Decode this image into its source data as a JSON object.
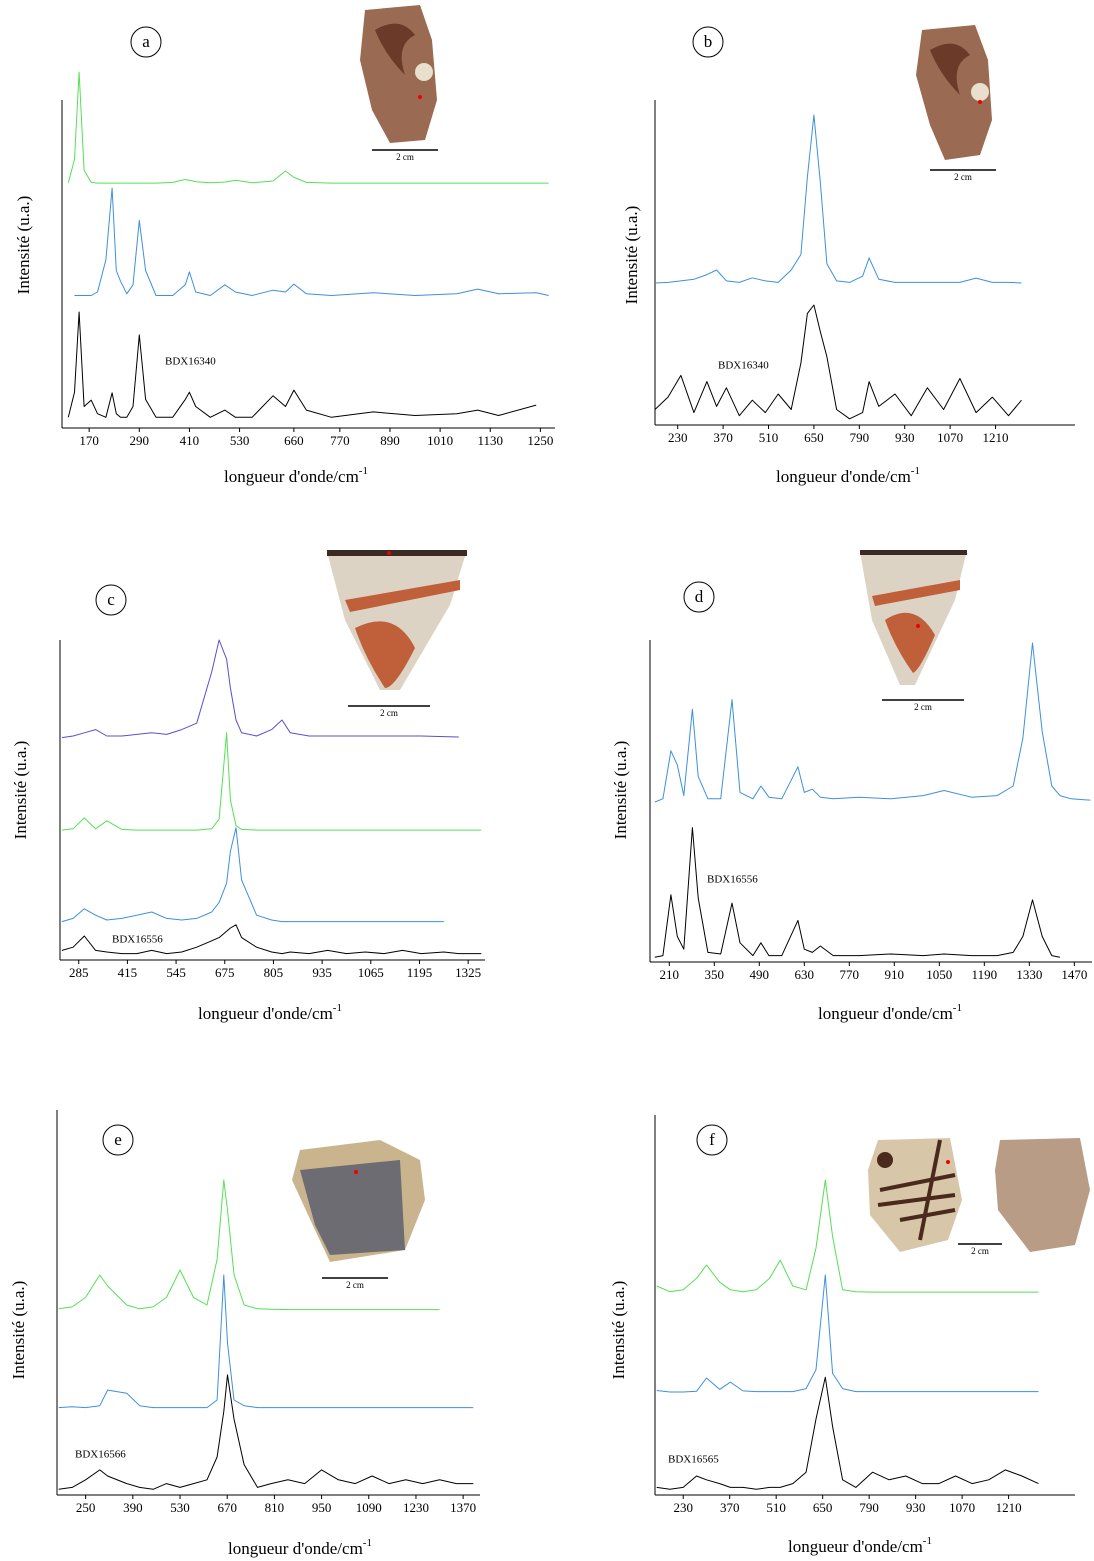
{
  "chart_data": [
    {
      "type": "line",
      "panel_label": "a",
      "ylabel": "Intensité (u.a.)",
      "xlabel": "longueur d'onde/cm",
      "xlabel_superscript": "-1",
      "annotation": "BDX16340",
      "image_scale": "2 cm",
      "x": [
        120,
        135,
        146,
        158,
        175,
        190,
        210,
        225,
        235,
        245,
        260,
        275,
        290,
        305,
        330,
        370,
        400,
        410,
        425,
        460,
        495,
        520,
        560,
        610,
        640,
        660,
        690,
        750,
        850,
        950,
        1050,
        1100,
        1150,
        1240,
        1270
      ],
      "xlim": [
        105,
        1285
      ],
      "xticks": [
        170,
        290,
        410,
        530,
        660,
        770,
        890,
        1010,
        1130,
        1250
      ],
      "ylim": [
        0,
        100
      ],
      "series": [
        {
          "color": "#55e055",
          "values": [
            68.5,
            75,
            99.4,
            72,
            68.6,
            68.4,
            68.4,
            68.4,
            68.4,
            68.4,
            68.4,
            68.4,
            68.4,
            68.4,
            68.4,
            68.6,
            69.4,
            69.2,
            68.8,
            68.5,
            68.7,
            69.2,
            68.5,
            69,
            71.8,
            70,
            68.6,
            68.4,
            68.4,
            68.4,
            68.4,
            68.4,
            68.4,
            68.4,
            68.4
          ]
        },
        {
          "color": "#3d8fe0",
          "values": [
            null,
            37,
            37,
            37,
            37,
            38,
            47,
            67,
            44,
            41,
            37.5,
            40,
            58,
            44,
            37,
            37,
            40,
            43.6,
            38,
            37,
            40,
            38,
            37,
            38.5,
            38,
            40.2,
            37.5,
            37,
            37.8,
            37,
            37.5,
            38.8,
            37.5,
            37.8,
            37
          ]
        },
        {
          "color": "#000000",
          "values": [
            3,
            10,
            32.4,
            6,
            7.8,
            4,
            3,
            9.8,
            4,
            3,
            3,
            6,
            26,
            8,
            3,
            3,
            8,
            10,
            6,
            3,
            5,
            3,
            3,
            9,
            6,
            10.6,
            5,
            3,
            4.5,
            3.5,
            4,
            5,
            3.5,
            6.4,
            null
          ]
        }
      ]
    },
    {
      "type": "line",
      "panel_label": "b",
      "ylabel": "Intensité (u.a.)",
      "xlabel": "longueur d'onde/cm",
      "xlabel_superscript": "-1",
      "annotation": "BDX16340",
      "image_scale": "2 cm",
      "x": [
        160,
        200,
        240,
        280,
        320,
        350,
        380,
        420,
        460,
        500,
        540,
        580,
        610,
        630,
        650,
        670,
        690,
        720,
        760,
        800,
        820,
        850,
        900,
        950,
        1000,
        1050,
        1100,
        1150,
        1200,
        1250,
        1290
      ],
      "xlim": [
        160,
        1455
      ],
      "xticks": [
        230,
        370,
        510,
        650,
        790,
        930,
        1070,
        1210
      ],
      "ylim": [
        0,
        100
      ],
      "series": [
        {
          "color": "#3d8fe0",
          "values": [
            45.8,
            46,
            46.5,
            47,
            48.5,
            50,
            46.5,
            46,
            47.5,
            46.5,
            46,
            50,
            55,
            80,
            100,
            78,
            52,
            46.5,
            46,
            48,
            53.9,
            47,
            46,
            46,
            46,
            46,
            46,
            47.4,
            46,
            46,
            45.8
          ]
        },
        {
          "color": "#000000",
          "values": [
            5,
            9,
            16,
            4,
            14,
            6,
            12,
            3,
            8,
            4,
            10,
            5,
            20,
            36,
            38.7,
            30,
            22,
            5,
            2,
            4,
            14,
            6,
            10,
            3,
            12,
            5,
            15,
            4,
            9,
            3,
            8
          ]
        }
      ]
    },
    {
      "type": "line",
      "panel_label": "c",
      "ylabel": "Intensité (u.a.)",
      "xlabel": "longueur d'onde/cm",
      "xlabel_superscript": "-1",
      "annotation": "BDX16556",
      "image_scale": "2 cm",
      "x": [
        240,
        270,
        300,
        330,
        360,
        400,
        440,
        480,
        520,
        560,
        600,
        640,
        660,
        680,
        690,
        705,
        720,
        760,
        800,
        828,
        850,
        900,
        950,
        1000,
        1050,
        1100,
        1150,
        1200,
        1260,
        1300,
        1360
      ],
      "xlim": [
        235,
        1370
      ],
      "xticks": [
        285,
        415,
        545,
        675,
        805,
        935,
        1065,
        1195,
        1325
      ],
      "ylim": [
        0,
        100
      ],
      "series": [
        {
          "color": "#5a4fcf",
          "values": [
            69.5,
            70,
            71,
            72,
            70,
            70,
            70.5,
            71,
            70.5,
            72,
            74,
            90,
            100,
            94,
            85,
            75,
            71,
            70,
            72,
            75,
            71,
            70,
            70,
            70,
            70,
            70,
            70,
            70,
            69.8,
            69.7,
            null
          ]
        },
        {
          "color": "#55e055",
          "values": [
            40.6,
            41,
            44.4,
            41,
            43.5,
            40.8,
            40.6,
            40.6,
            40.6,
            40.6,
            40.6,
            41,
            44,
            71,
            50,
            42,
            40.8,
            40.6,
            40.6,
            40.6,
            40.6,
            40.6,
            40.6,
            40.6,
            40.6,
            40.6,
            40.6,
            40.6,
            40.6,
            40.6,
            40.6
          ]
        },
        {
          "color": "#3d8fe0",
          "values": [
            12,
            13,
            16,
            14,
            12.5,
            13,
            14,
            15,
            13,
            12.5,
            13,
            15,
            18,
            24,
            34,
            41.3,
            25,
            14,
            12.5,
            12,
            12,
            12,
            12,
            12,
            12,
            12,
            12,
            12,
            12,
            null,
            null
          ]
        },
        {
          "color": "#000000",
          "values": [
            3,
            4,
            7.5,
            3,
            2.5,
            2,
            2,
            3,
            2,
            2.5,
            4,
            6,
            7,
            9,
            10,
            11,
            7,
            4,
            2.5,
            2,
            2.5,
            2,
            3,
            2,
            2.5,
            2,
            3,
            2,
            2.5,
            2,
            2
          ]
        }
      ]
    },
    {
      "type": "line",
      "panel_label": "d",
      "ylabel": "Intensité (u.a.)",
      "xlabel": "longueur d'onde/cm",
      "xlabel_superscript": "-1",
      "annotation": "BDX16556",
      "image_scale": "2 cm",
      "x": [
        165,
        190,
        215,
        235,
        255,
        282,
        300,
        330,
        370,
        405,
        430,
        470,
        495,
        520,
        560,
        610,
        630,
        655,
        680,
        720,
        800,
        900,
        1000,
        1065,
        1150,
        1230,
        1280,
        1310,
        1340,
        1370,
        1400,
        1425,
        1460,
        1500,
        1520
      ],
      "xlim": [
        150,
        1525
      ],
      "xticks": [
        210,
        350,
        490,
        630,
        770,
        910,
        1050,
        1190,
        1330,
        1470
      ],
      "ylim": [
        0,
        100
      ],
      "series": [
        {
          "color": "#3d8fe0",
          "values": [
            50,
            51,
            66,
            61.6,
            52,
            79,
            58,
            51,
            51,
            82,
            53,
            51,
            55,
            51.5,
            51,
            61,
            53,
            54,
            51.5,
            51,
            51.5,
            51,
            52,
            53.6,
            51.5,
            52,
            55,
            70,
            99.7,
            72,
            55,
            52,
            51,
            50.7,
            50.6
          ]
        },
        {
          "color": "#000000",
          "values": [
            1.5,
            2,
            21,
            8,
            4,
            42,
            20,
            3,
            2.5,
            18.4,
            6,
            2,
            6,
            2,
            2,
            13,
            4,
            3,
            5,
            2,
            2,
            2.5,
            2,
            2.5,
            2,
            2,
            3,
            8,
            19.4,
            8,
            2,
            1.5,
            null,
            null,
            null
          ]
        }
      ]
    },
    {
      "type": "line",
      "panel_label": "e",
      "ylabel": "Intensité (u.a.)",
      "xlabel": "longueur d'onde/cm",
      "xlabel_superscript": "-1",
      "annotation": "BDX16566",
      "image_scale": "2 cm",
      "x": [
        170,
        210,
        250,
        292,
        315,
        372,
        410,
        450,
        490,
        530,
        570,
        610,
        640,
        660,
        671,
        690,
        720,
        760,
        800,
        850,
        900,
        950,
        1000,
        1050,
        1100,
        1150,
        1200,
        1250,
        1300,
        1350,
        1400
      ],
      "xlim": [
        165,
        1420
      ],
      "xticks": [
        250,
        390,
        530,
        670,
        810,
        950,
        1090,
        1230,
        1370
      ],
      "ylim": [
        0,
        100
      ],
      "series": [
        {
          "color": "#55e055",
          "values": [
            49,
            49.5,
            52,
            57.9,
            55,
            50,
            49,
            49.5,
            52,
            59.2,
            52,
            50,
            62,
            82.9,
            75,
            58,
            50,
            49,
            48.9,
            48.8,
            48.8,
            48.8,
            48.8,
            48.8,
            48.8,
            48.8,
            48.8,
            48.8,
            48.8,
            null,
            null
          ]
        },
        {
          "color": "#3d8fe0",
          "values": [
            23,
            23.2,
            23,
            23.5,
            27.6,
            26.8,
            23.5,
            23,
            23,
            23,
            23,
            23,
            25,
            57.9,
            40,
            25,
            23.5,
            23,
            23,
            23,
            23,
            23,
            23,
            23,
            23,
            23,
            23,
            23,
            23,
            23,
            23
          ]
        },
        {
          "color": "#000000",
          "values": [
            1.5,
            2,
            4,
            6.6,
            5,
            3,
            2,
            1.5,
            3,
            2,
            3,
            4,
            10,
            22,
            31.6,
            20,
            8,
            2,
            3,
            4,
            3,
            6.6,
            4,
            3,
            5,
            3,
            4,
            3,
            4,
            3,
            3
          ]
        }
      ]
    },
    {
      "type": "line",
      "panel_label": "f",
      "ylabel": "Intensité (u.a.)",
      "xlabel": "longueur d'onde/cm",
      "xlabel_superscript": "-1",
      "annotation": "BDX16565",
      "image_scale": "2 cm",
      "x": [
        150,
        190,
        230,
        270,
        300,
        340,
        372,
        410,
        450,
        490,
        522,
        560,
        600,
        630,
        658,
        680,
        710,
        750,
        800,
        850,
        900,
        950,
        1000,
        1050,
        1100,
        1150,
        1200,
        1250,
        1300
      ],
      "xlim": [
        145,
        1410
      ],
      "xticks": [
        230,
        370,
        510,
        650,
        790,
        930,
        1070,
        1210
      ],
      "ylim": [
        0,
        100
      ],
      "series": [
        {
          "color": "#55e055",
          "values": [
            55,
            53.5,
            54,
            57,
            60.5,
            56,
            54,
            53.5,
            54,
            57,
            61.8,
            55,
            54,
            65,
            82.9,
            68,
            54,
            53.5,
            53.4,
            53.4,
            53.4,
            53.4,
            53.4,
            53.4,
            53.4,
            53.4,
            53.4,
            53.4,
            53.4
          ]
        },
        {
          "color": "#3d8fe0",
          "values": [
            27.5,
            27.1,
            27.1,
            27.3,
            30.8,
            27.8,
            29.7,
            27.4,
            27.2,
            27.2,
            27.2,
            27.2,
            28,
            33,
            57.9,
            32,
            28,
            27.2,
            27.2,
            27.2,
            27.2,
            27.2,
            27.2,
            27.2,
            27.2,
            27.2,
            27.2,
            27.2,
            27.2
          ]
        },
        {
          "color": "#000000",
          "values": [
            2,
            1.5,
            2,
            5,
            4,
            3,
            2,
            2,
            1.5,
            2,
            2,
            3,
            6,
            20,
            31,
            18,
            4,
            2,
            6,
            4,
            5,
            3,
            3,
            5,
            3,
            4,
            6.6,
            5,
            3
          ]
        }
      ]
    }
  ]
}
